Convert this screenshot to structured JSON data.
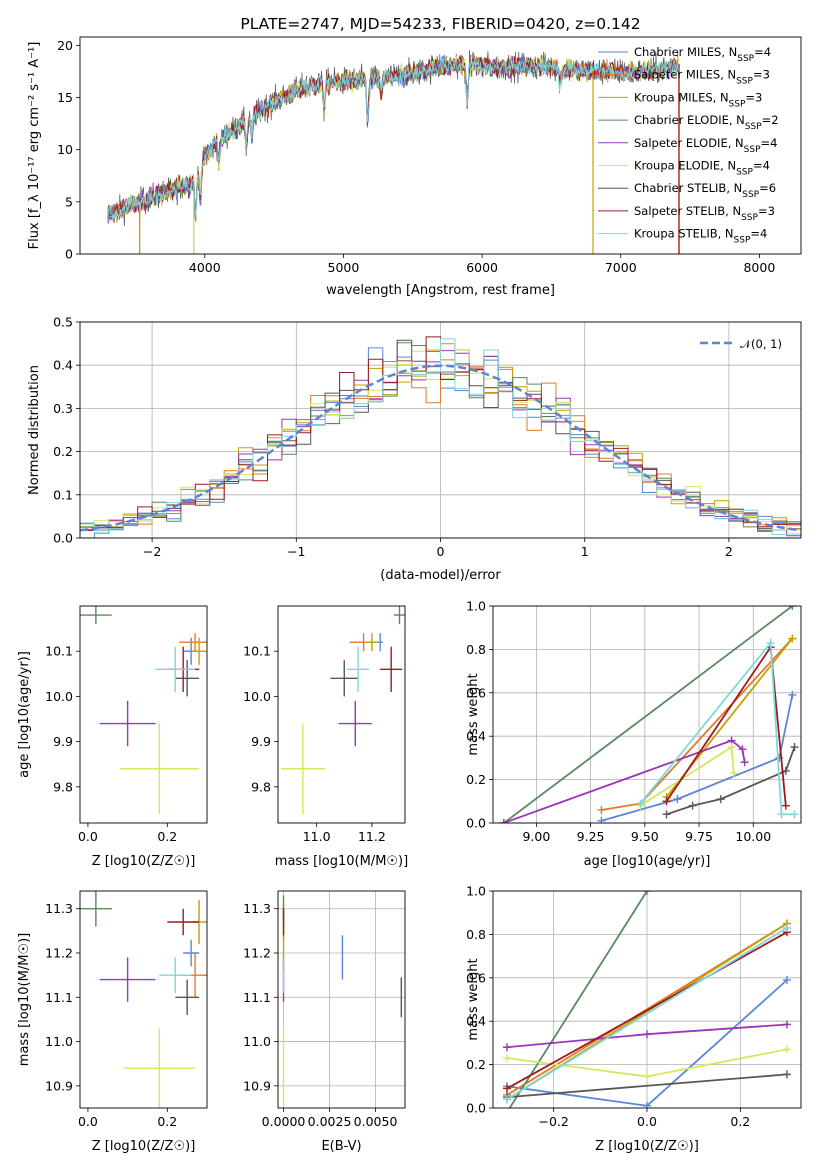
{
  "colors": {
    "chabrier_miles": "#5b86d3",
    "salpeter_miles": "#e07a2a",
    "kroupa_miles": "#c7a000",
    "chabrier_elodie": "#5a8a5f",
    "salpeter_elodie": "#9b35b8",
    "kroupa_elodie": "#d4e85c",
    "chabrier_stelib": "#575757",
    "salpeter_stelib": "#a0191c",
    "kroupa_stelib": "#7ed8dc"
  },
  "chart_data": [
    {
      "id": "spectrum",
      "type": "line",
      "title": "PLATE=2747, MJD=54233, FIBERID=0420, z=0.142",
      "xlabel": "wavelength [Angstrom, rest frame]",
      "ylabel": "Flux [f_λ 10⁻¹⁷ erg cm⁻² s⁻¹ A⁻¹]",
      "xlim": [
        3100,
        8300
      ],
      "ylim": [
        0,
        20.8
      ],
      "xticks": [
        4000,
        5000,
        6000,
        7000,
        8000
      ],
      "yticks": [
        0,
        5,
        10,
        15,
        20
      ],
      "grid": false,
      "legend_position": "top-right",
      "continuum_x": [
        3300,
        3500,
        3700,
        3900,
        4000,
        4100,
        4300,
        4500,
        4700,
        4900,
        5100,
        5300,
        5500,
        5700,
        5900,
        6100,
        6300,
        6500,
        6700,
        6900,
        7100,
        7300,
        7400
      ],
      "continuum_y": [
        3.8,
        4.8,
        5.8,
        6.8,
        9.4,
        10.9,
        12.8,
        14.6,
        15.9,
        16.5,
        16.6,
        16.9,
        17.3,
        18.0,
        18.2,
        17.9,
        18.0,
        17.9,
        17.6,
        17.5,
        17.4,
        17.7,
        18.2
      ],
      "series": [
        {
          "name": "Chabrier MILES, N_SSP=4",
          "key": "chabrier_miles"
        },
        {
          "name": "Salpeter MILES, N_SSP=3",
          "key": "salpeter_miles"
        },
        {
          "name": "Kroupa MILES, N_SSP=3",
          "key": "kroupa_miles"
        },
        {
          "name": "Chabrier ELODIE, N_SSP=2",
          "key": "chabrier_elodie"
        },
        {
          "name": "Salpeter ELODIE, N_SSP=4",
          "key": "salpeter_elodie"
        },
        {
          "name": "Kroupa ELODIE, N_SSP=4",
          "key": "kroupa_elodie"
        },
        {
          "name": "Chabrier STELIB, N_SSP=6",
          "key": "chabrier_stelib"
        },
        {
          "name": "Salpeter STELIB, N_SSP=3",
          "key": "salpeter_stelib"
        },
        {
          "name": "Kroupa STELIB, N_SSP=4",
          "key": "kroupa_stelib"
        }
      ]
    },
    {
      "id": "residuals",
      "type": "line",
      "xlabel": "(data-model)/error",
      "ylabel": "Normed distribution",
      "xlim": [
        -2.5,
        2.5
      ],
      "ylim": [
        0,
        0.5
      ],
      "xticks": [
        -2,
        -1,
        0,
        1,
        2
      ],
      "yticks": [
        0.0,
        0.1,
        0.2,
        0.3,
        0.4,
        0.5
      ],
      "grid": true,
      "legend_position": "top-right",
      "legend_label": "𝒩(0, 1)",
      "gaussian": {
        "mean": 0,
        "sigma": 1
      }
    },
    {
      "id": "age_vs_z",
      "type": "scatter",
      "xlabel": "Z [log10(Z/Z☉)]",
      "ylabel": "age  [log10(age/yr)]",
      "xlim": [
        -0.02,
        0.3
      ],
      "ylim": [
        9.72,
        10.2
      ],
      "xticks": [
        0.0,
        0.2
      ],
      "yticks": [
        9.8,
        9.9,
        10.0,
        10.1
      ],
      "grid": false,
      "points": [
        {
          "key": "chabrier_miles",
          "x": 0.26,
          "y": 10.1,
          "xerr": 0.02,
          "yerr": 0.03
        },
        {
          "key": "salpeter_miles",
          "x": 0.27,
          "y": 10.12,
          "xerr": 0.04,
          "yerr": 0.02
        },
        {
          "key": "kroupa_miles",
          "x": 0.28,
          "y": 10.1,
          "xerr": 0.02,
          "yerr": 0.03
        },
        {
          "key": "chabrier_elodie",
          "x": 0.02,
          "y": 10.18,
          "xerr": 0.04,
          "yerr": 0.02
        },
        {
          "key": "salpeter_elodie",
          "x": 0.1,
          "y": 9.94,
          "xerr": 0.07,
          "yerr": 0.05
        },
        {
          "key": "kroupa_elodie",
          "x": 0.18,
          "y": 9.84,
          "xerr": 0.1,
          "yerr": 0.1
        },
        {
          "key": "chabrier_stelib",
          "x": 0.25,
          "y": 10.04,
          "xerr": 0.03,
          "yerr": 0.04
        },
        {
          "key": "salpeter_stelib",
          "x": 0.24,
          "y": 10.06,
          "xerr": 0.04,
          "yerr": 0.05
        },
        {
          "key": "kroupa_stelib",
          "x": 0.22,
          "y": 10.06,
          "xerr": 0.05,
          "yerr": 0.05
        }
      ]
    },
    {
      "id": "age_vs_mass",
      "type": "scatter",
      "xlabel": "mass [log10(M/M☉)]",
      "ylabel": "",
      "xlim": [
        10.86,
        11.32
      ],
      "ylim": [
        9.72,
        10.2
      ],
      "xticks": [
        11.0,
        11.2
      ],
      "yticks": [
        9.8,
        9.9,
        10.0,
        10.1
      ],
      "grid": false,
      "points": [
        {
          "key": "chabrier_miles",
          "x": 11.23,
          "y": 10.12,
          "xerr": 0.01,
          "yerr": 0.02
        },
        {
          "key": "salpeter_miles",
          "x": 11.17,
          "y": 10.12,
          "xerr": 0.05,
          "yerr": 0.02
        },
        {
          "key": "kroupa_miles",
          "x": 11.2,
          "y": 10.12,
          "xerr": 0.02,
          "yerr": 0.02
        },
        {
          "key": "chabrier_elodie",
          "x": 11.3,
          "y": 10.18,
          "xerr": 0.02,
          "yerr": 0.02
        },
        {
          "key": "salpeter_elodie",
          "x": 11.14,
          "y": 9.94,
          "xerr": 0.06,
          "yerr": 0.05
        },
        {
          "key": "kroupa_elodie",
          "x": 10.95,
          "y": 9.84,
          "xerr": 0.08,
          "yerr": 0.1
        },
        {
          "key": "chabrier_stelib",
          "x": 11.1,
          "y": 10.04,
          "xerr": 0.05,
          "yerr": 0.04
        },
        {
          "key": "salpeter_stelib",
          "x": 11.27,
          "y": 10.06,
          "xerr": 0.04,
          "yerr": 0.05
        },
        {
          "key": "kroupa_stelib",
          "x": 11.15,
          "y": 10.06,
          "xerr": 0.04,
          "yerr": 0.05
        }
      ]
    },
    {
      "id": "weight_vs_age",
      "type": "line",
      "xlabel": "age  [log10(age/yr)]",
      "ylabel": "mass weight",
      "xlim": [
        8.8,
        10.22
      ],
      "ylim": [
        0,
        1
      ],
      "xticks": [
        9.0,
        9.25,
        9.5,
        9.75,
        10.0
      ],
      "yticks": [
        0.0,
        0.2,
        0.4,
        0.6,
        0.8,
        1.0
      ],
      "grid": true,
      "series": [
        {
          "key": "chabrier_miles",
          "x": [
            9.3,
            9.65,
            10.12,
            10.18
          ],
          "y": [
            0.01,
            0.11,
            0.3,
            0.59
          ]
        },
        {
          "key": "salpeter_miles",
          "x": [
            9.3,
            9.48,
            10.18
          ],
          "y": [
            0.06,
            0.09,
            0.85
          ]
        },
        {
          "key": "kroupa_miles",
          "x": [
            9.6,
            10.18
          ],
          "y": [
            0.12,
            0.85
          ]
        },
        {
          "key": "chabrier_elodie",
          "x": [
            8.85,
            10.18
          ],
          "y": [
            0.0,
            1.0
          ]
        },
        {
          "key": "salpeter_elodie",
          "x": [
            8.85,
            9.9,
            9.95,
            9.96
          ],
          "y": [
            0.0,
            0.38,
            0.34,
            0.28
          ]
        },
        {
          "key": "kroupa_elodie",
          "x": [
            9.48,
            9.9,
            9.91
          ],
          "y": [
            0.08,
            0.35,
            0.23
          ]
        },
        {
          "key": "chabrier_stelib",
          "x": [
            9.6,
            9.72,
            9.85,
            10.15,
            10.19
          ],
          "y": [
            0.04,
            0.08,
            0.11,
            0.24,
            0.35
          ]
        },
        {
          "key": "salpeter_stelib",
          "x": [
            9.6,
            10.08,
            10.15
          ],
          "y": [
            0.1,
            0.81,
            0.08
          ]
        },
        {
          "key": "kroupa_stelib",
          "x": [
            9.48,
            10.08,
            10.13,
            10.19
          ],
          "y": [
            0.09,
            0.83,
            0.04,
            0.04
          ]
        }
      ]
    },
    {
      "id": "mass_vs_z",
      "type": "scatter",
      "xlabel": "Z [log10(Z/Z☉)]",
      "ylabel": "mass [log10(M/M☉)]",
      "xlim": [
        -0.02,
        0.3
      ],
      "ylim": [
        10.85,
        11.34
      ],
      "xticks": [
        0.0,
        0.2
      ],
      "yticks": [
        10.9,
        11.0,
        11.1,
        11.2,
        11.3
      ],
      "grid": false,
      "points": [
        {
          "key": "chabrier_miles",
          "x": 0.26,
          "y": 11.2,
          "xerr": 0.02,
          "yerr": 0.03
        },
        {
          "key": "salpeter_miles",
          "x": 0.27,
          "y": 11.15,
          "xerr": 0.04,
          "yerr": 0.05
        },
        {
          "key": "kroupa_miles",
          "x": 0.28,
          "y": 11.27,
          "xerr": 0.02,
          "yerr": 0.05
        },
        {
          "key": "chabrier_elodie",
          "x": 0.02,
          "y": 11.3,
          "xerr": 0.04,
          "yerr": 0.04
        },
        {
          "key": "salpeter_elodie",
          "x": 0.1,
          "y": 11.14,
          "xerr": 0.07,
          "yerr": 0.05
        },
        {
          "key": "kroupa_elodie",
          "x": 0.18,
          "y": 10.94,
          "xerr": 0.09,
          "yerr": 0.09
        },
        {
          "key": "chabrier_stelib",
          "x": 0.25,
          "y": 11.1,
          "xerr": 0.03,
          "yerr": 0.04
        },
        {
          "key": "salpeter_stelib",
          "x": 0.24,
          "y": 11.27,
          "xerr": 0.04,
          "yerr": 0.03
        },
        {
          "key": "kroupa_stelib",
          "x": 0.22,
          "y": 11.15,
          "xerr": 0.04,
          "yerr": 0.04
        }
      ]
    },
    {
      "id": "mass_vs_ebv",
      "type": "scatter",
      "xlabel": "E(B-V)",
      "ylabel": "",
      "xlim": [
        -0.0003,
        0.0066
      ],
      "ylim": [
        10.85,
        11.34
      ],
      "xticks": [
        0.0,
        0.0025,
        0.005
      ],
      "xticklabels": [
        "0.0000",
        "0.0025",
        "0.0050"
      ],
      "yticks": [
        10.9,
        11.0,
        11.1,
        11.2,
        11.3
      ],
      "grid": true,
      "points": [
        {
          "key": "chabrier_miles",
          "x": 0.0032,
          "y": 11.19,
          "yerr": 0.05
        },
        {
          "key": "salpeter_miles",
          "x": 0.0,
          "y": 11.27,
          "yerr": 0.04
        },
        {
          "key": "kroupa_miles",
          "x": 0.0,
          "y": 11.2,
          "yerr": 0.04
        },
        {
          "key": "chabrier_elodie",
          "x": 0.0,
          "y": 11.3,
          "yerr": 0.03
        },
        {
          "key": "salpeter_elodie",
          "x": 0.0,
          "y": 11.14,
          "yerr": 0.05
        },
        {
          "key": "kroupa_elodie",
          "x": 0.0,
          "y": 10.94,
          "yerr": 0.09
        },
        {
          "key": "chabrier_stelib",
          "x": 0.0064,
          "y": 11.1,
          "yerr": 0.045
        },
        {
          "key": "salpeter_stelib",
          "x": 0.0,
          "y": 11.27,
          "yerr": 0.03
        },
        {
          "key": "kroupa_stelib",
          "x": 0.0,
          "y": 11.15,
          "yerr": 0.04
        }
      ]
    },
    {
      "id": "weight_vs_z",
      "type": "line",
      "xlabel": "Z [log10(Z/Z☉)]",
      "ylabel": "mass weight",
      "xlim": [
        -0.33,
        0.33
      ],
      "ylim": [
        0,
        1
      ],
      "xticks": [
        -0.2,
        0.0,
        0.2
      ],
      "yticks": [
        0.0,
        0.2,
        0.4,
        0.6,
        0.8,
        1.0
      ],
      "grid": true,
      "series": [
        {
          "key": "chabrier_miles",
          "x": [
            -0.3,
            0.0,
            0.3
          ],
          "y": [
            0.1,
            0.01,
            0.59
          ]
        },
        {
          "key": "salpeter_miles",
          "x": [
            -0.3,
            0.3
          ],
          "y": [
            0.06,
            0.85
          ]
        },
        {
          "key": "kroupa_miles",
          "x": [
            -0.3,
            0.3
          ],
          "y": [
            0.04,
            0.85
          ]
        },
        {
          "key": "chabrier_elodie",
          "x": [
            -0.3,
            0.0
          ],
          "y": [
            -0.02,
            1.0
          ]
        },
        {
          "key": "salpeter_elodie",
          "x": [
            -0.3,
            0.0,
            0.3
          ],
          "y": [
            0.28,
            0.34,
            0.385
          ]
        },
        {
          "key": "kroupa_elodie",
          "x": [
            -0.3,
            0.0,
            0.3
          ],
          "y": [
            0.23,
            0.145,
            0.27
          ]
        },
        {
          "key": "chabrier_stelib",
          "x": [
            -0.3,
            0.3
          ],
          "y": [
            0.05,
            0.155
          ]
        },
        {
          "key": "salpeter_stelib",
          "x": [
            -0.3,
            0.3
          ],
          "y": [
            0.09,
            0.81
          ]
        },
        {
          "key": "kroupa_stelib",
          "x": [
            -0.3,
            0.3
          ],
          "y": [
            0.04,
            0.83
          ]
        }
      ]
    }
  ]
}
